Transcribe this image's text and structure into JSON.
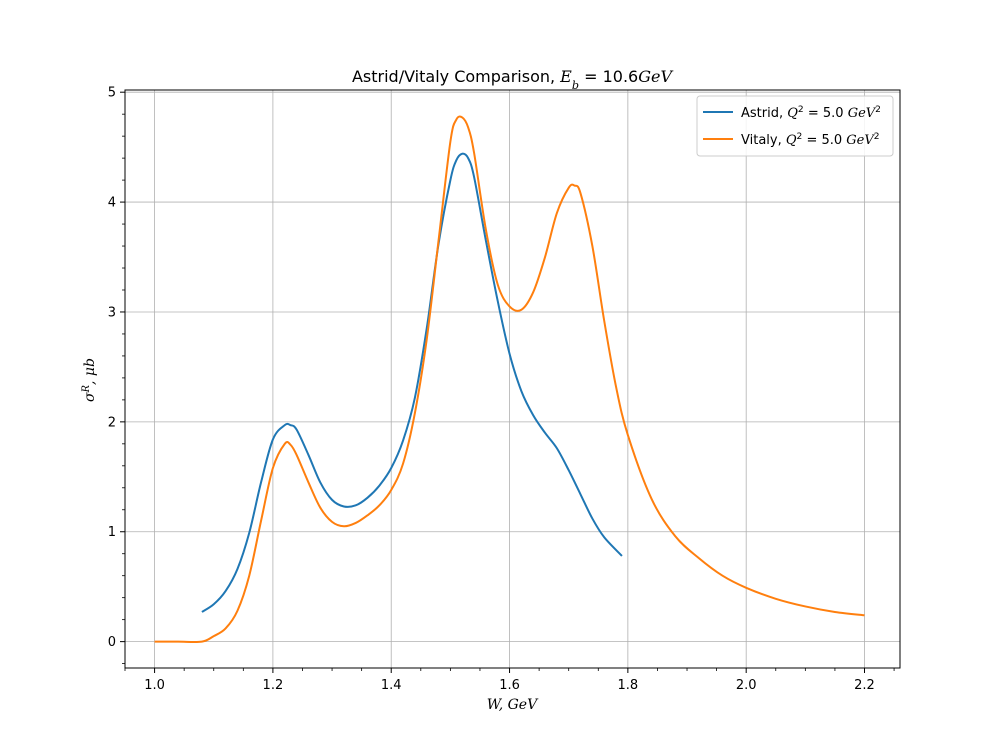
{
  "chart_data": {
    "type": "line",
    "title": "Astrid/Vitaly Comparison, E_b = 10.6GeV",
    "xlabel": "W, GeV",
    "ylabel": "σ^R, μb",
    "xlim": [
      0.95,
      2.26
    ],
    "ylim": [
      -0.24,
      5.02
    ],
    "xticks": [
      "1.0",
      "1.2",
      "1.4",
      "1.6",
      "1.8",
      "2.0",
      "2.2"
    ],
    "yticks": [
      "0",
      "1",
      "2",
      "3",
      "4",
      "5"
    ],
    "grid": true,
    "legend_position": "upper right",
    "series": [
      {
        "name": "Astrid, Q^2 = 5.0 GeV^2",
        "color": "#1f77b4",
        "x": [
          1.08,
          1.1,
          1.12,
          1.14,
          1.16,
          1.18,
          1.2,
          1.22,
          1.23,
          1.24,
          1.26,
          1.28,
          1.3,
          1.32,
          1.34,
          1.36,
          1.38,
          1.4,
          1.42,
          1.44,
          1.46,
          1.48,
          1.5,
          1.51,
          1.52,
          1.53,
          1.54,
          1.56,
          1.58,
          1.6,
          1.62,
          1.64,
          1.66,
          1.68,
          1.7,
          1.72,
          1.74,
          1.76,
          1.79
        ],
        "y": [
          0.27,
          0.34,
          0.46,
          0.66,
          0.99,
          1.45,
          1.84,
          1.97,
          1.97,
          1.93,
          1.7,
          1.45,
          1.29,
          1.23,
          1.24,
          1.31,
          1.42,
          1.58,
          1.83,
          2.22,
          2.85,
          3.62,
          4.2,
          4.38,
          4.44,
          4.4,
          4.23,
          3.65,
          3.1,
          2.62,
          2.28,
          2.06,
          1.9,
          1.76,
          1.56,
          1.34,
          1.12,
          0.95,
          0.78
        ]
      },
      {
        "name": "Vitaly, Q^2 = 5.0 GeV^2",
        "color": "#ff7f0e",
        "x": [
          1.0,
          1.04,
          1.08,
          1.1,
          1.12,
          1.14,
          1.16,
          1.18,
          1.2,
          1.22,
          1.23,
          1.24,
          1.26,
          1.28,
          1.3,
          1.32,
          1.34,
          1.36,
          1.38,
          1.4,
          1.42,
          1.44,
          1.46,
          1.48,
          1.5,
          1.51,
          1.52,
          1.53,
          1.54,
          1.56,
          1.58,
          1.6,
          1.62,
          1.64,
          1.66,
          1.68,
          1.7,
          1.71,
          1.72,
          1.74,
          1.76,
          1.78,
          1.8,
          1.84,
          1.88,
          1.92,
          1.96,
          2.0,
          2.05,
          2.1,
          2.15,
          2.2
        ],
        "y": [
          0.0,
          0.0,
          0.0,
          0.05,
          0.12,
          0.28,
          0.6,
          1.1,
          1.58,
          1.8,
          1.79,
          1.7,
          1.45,
          1.22,
          1.09,
          1.05,
          1.08,
          1.15,
          1.24,
          1.38,
          1.62,
          2.08,
          2.75,
          3.65,
          4.55,
          4.75,
          4.77,
          4.68,
          4.45,
          3.75,
          3.25,
          3.05,
          3.02,
          3.18,
          3.5,
          3.9,
          4.13,
          4.15,
          4.08,
          3.6,
          2.92,
          2.32,
          1.88,
          1.3,
          0.96,
          0.76,
          0.6,
          0.49,
          0.39,
          0.32,
          0.27,
          0.24
        ]
      }
    ]
  }
}
